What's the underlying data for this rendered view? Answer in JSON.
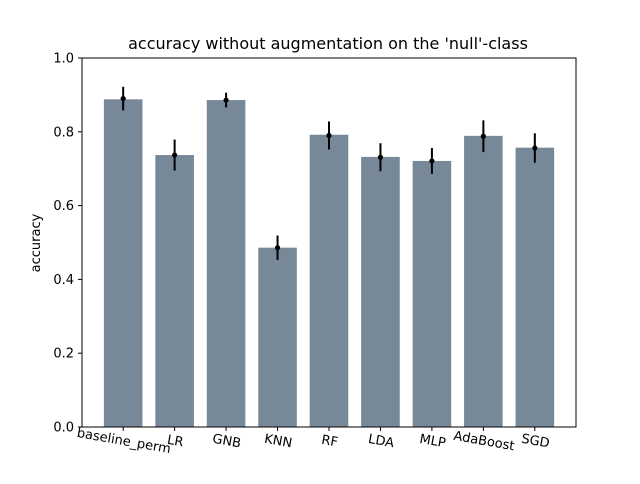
{
  "chart_data": {
    "type": "bar",
    "title": "accuracy without augmentation on the 'null'-class",
    "xlabel": "",
    "ylabel": "accuracy",
    "ylim": [
      0,
      1.0
    ],
    "yticks": [
      0.0,
      0.2,
      0.4,
      0.6,
      0.8,
      1.0
    ],
    "ytick_labels": [
      "0.0",
      "0.2",
      "0.4",
      "0.6",
      "0.8",
      "1.0"
    ],
    "grid": false,
    "categories": [
      "baseline_perm",
      "LR",
      "GNB",
      "KNN",
      "RF",
      "LDA",
      "MLP",
      "AdaBoost",
      "SGD"
    ],
    "values": [
      0.888,
      0.737,
      0.886,
      0.486,
      0.792,
      0.732,
      0.721,
      0.789,
      0.757
    ],
    "points": [
      0.89,
      0.737,
      0.886,
      0.486,
      0.79,
      0.731,
      0.721,
      0.788,
      0.756
    ],
    "error": [
      0.032,
      0.042,
      0.02,
      0.033,
      0.038,
      0.038,
      0.035,
      0.043,
      0.04
    ],
    "colors": {
      "bar": "#778899",
      "errorbar": "#000000",
      "axis": "#000000"
    }
  }
}
